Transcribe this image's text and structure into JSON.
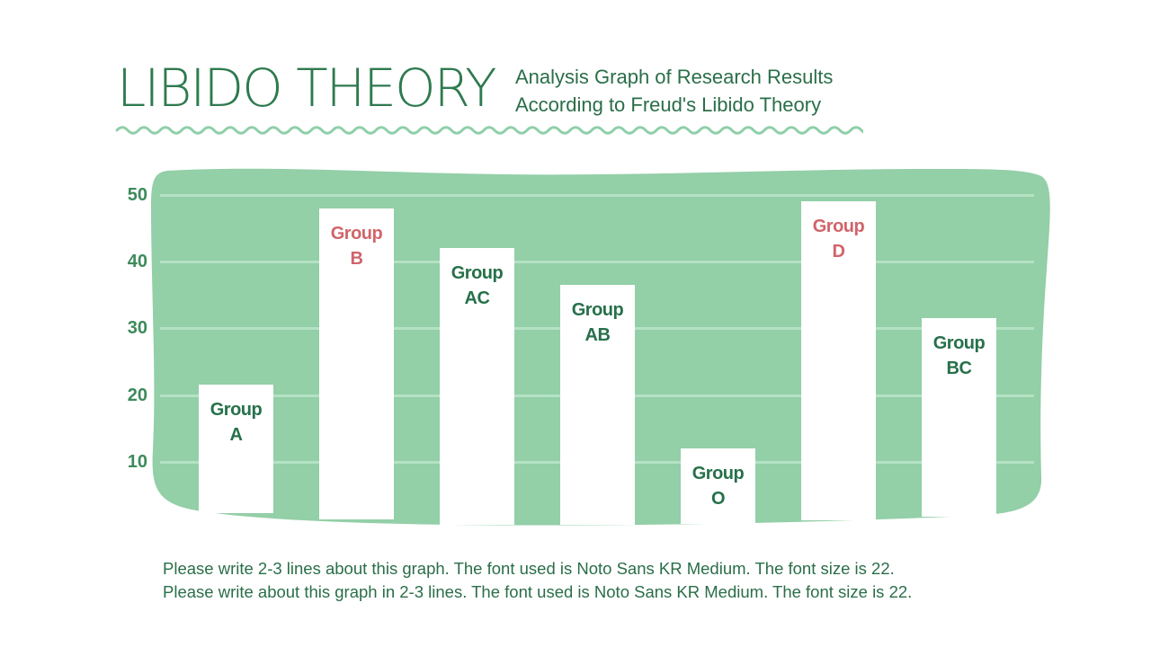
{
  "header": {
    "title": "LIBIDO THEORY",
    "subtitle_line1": "Analysis Graph of Research Results",
    "subtitle_line2": "According to Freud's Libido Theory"
  },
  "colors": {
    "panel_green": "#93cfa7",
    "gridline": "#b4e2c4",
    "dark_green_text": "#26704a",
    "highlight_red": "#d0646a",
    "wave": "#8fcfaa"
  },
  "caption": {
    "line1": "Please write 2-3 lines about this graph. The font used is Noto Sans KR Medium. The font size is 22.",
    "line2": "Please write about this graph in 2-3 lines. The font used is Noto Sans KR Medium. The font size is 22."
  },
  "chart_data": {
    "type": "bar",
    "title": "LIBIDO THEORY",
    "subtitle": "Analysis Graph of Research Results According to Freud's Libido Theory",
    "xlabel": "",
    "ylabel": "",
    "ylim": [
      0,
      50
    ],
    "yticks": [
      10,
      20,
      30,
      40,
      50
    ],
    "grid": true,
    "legend": null,
    "categories": [
      "Group A",
      "Group B",
      "Group AC",
      "Group AB",
      "Group O",
      "Group D",
      "Group BC"
    ],
    "label_lines": [
      [
        "Group",
        "A"
      ],
      [
        "Group",
        "B"
      ],
      [
        "Group",
        "AC"
      ],
      [
        "Group",
        "AB"
      ],
      [
        "Group",
        "O"
      ],
      [
        "Group",
        "D"
      ],
      [
        "Group",
        "BC"
      ]
    ],
    "values": [
      21.5,
      48,
      42,
      36.5,
      12,
      49,
      31.5
    ],
    "highlighted": [
      "Group B",
      "Group D"
    ]
  }
}
